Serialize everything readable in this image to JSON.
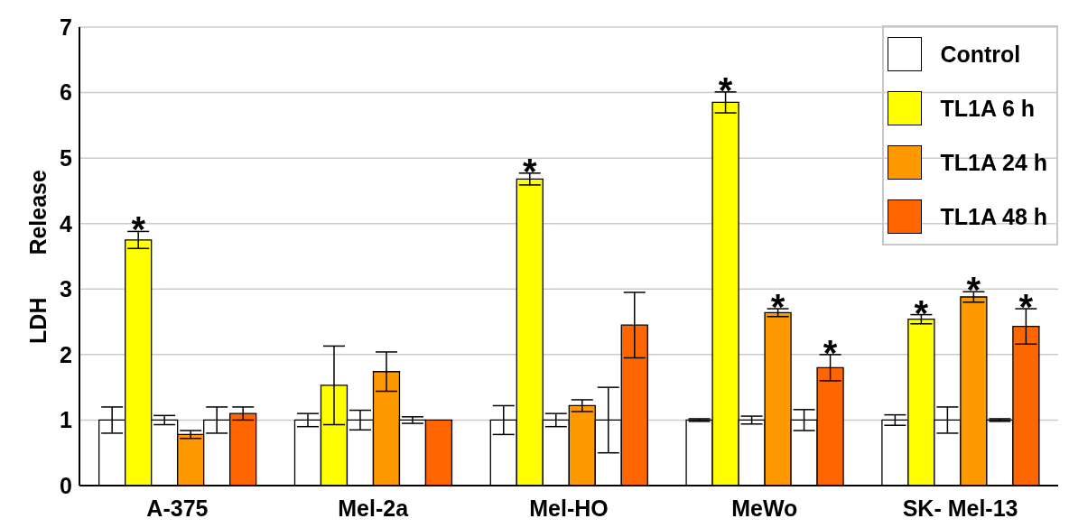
{
  "chart_data": {
    "type": "bar",
    "ylabel": "LDH Release",
    "categories": [
      "A-375",
      "Mel-2a",
      "Mel-HO",
      "MeWo",
      "SK- Mel-13"
    ],
    "series": [
      {
        "name": "Control",
        "color": "#ffffff",
        "values": [
          1,
          1,
          1,
          1,
          1
        ],
        "errors": [
          0.2,
          0.1,
          0.22,
          0.02,
          0.08
        ]
      },
      {
        "name": "TL1A 6 h",
        "color": "#ffff00",
        "values": [
          3.75,
          1.53,
          4.68,
          5.85,
          2.54
        ],
        "errors": [
          0.13,
          0.6,
          0.09,
          0.16,
          0.07
        ],
        "value_labels": [
          "*",
          null,
          "*",
          "*",
          "*"
        ]
      },
      {
        "color": "#ffffff",
        "values": [
          1,
          1,
          1,
          1,
          1
        ],
        "errors": [
          0.07,
          0.15,
          0.1,
          0.06,
          0.2
        ]
      },
      {
        "name": "TL1A 24 h",
        "color": "#ff9900",
        "values": [
          0.78,
          1.74,
          1.22,
          2.64,
          2.88
        ],
        "errors": [
          0.06,
          0.3,
          0.09,
          0.06,
          0.08
        ],
        "value_labels": [
          null,
          null,
          null,
          "*",
          "*"
        ]
      },
      {
        "color": "#ffffff",
        "values": [
          1,
          1,
          1,
          1,
          1
        ],
        "errors": [
          0.2,
          0.05,
          0.5,
          0.16,
          0.02
        ]
      },
      {
        "name": "TL1A 48 h",
        "color": "#ff6600",
        "values": [
          1.1,
          1.0,
          2.45,
          1.8,
          2.43
        ],
        "errors": [
          0.1,
          0,
          0.5,
          0.2,
          0.27
        ],
        "value_labels": [
          null,
          null,
          null,
          "*",
          "*"
        ]
      }
    ],
    "ylim": [
      0,
      7
    ],
    "yticks": [
      0,
      1,
      2,
      3,
      4,
      5,
      6,
      7
    ],
    "grid": "y",
    "legend": "top right"
  }
}
